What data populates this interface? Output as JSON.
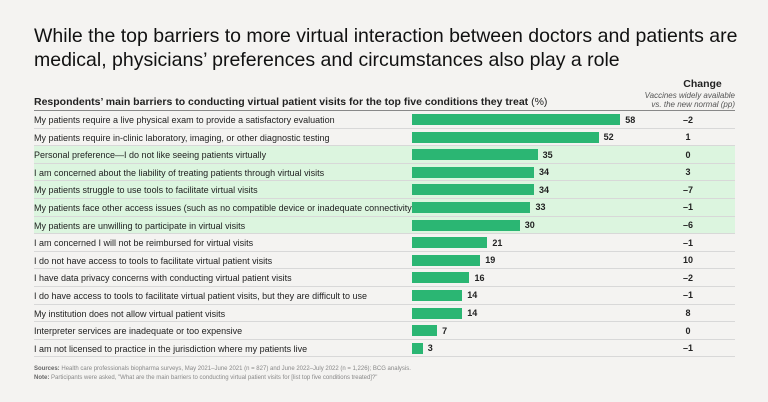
{
  "chart_data": {
    "type": "bar",
    "title": "While the top barriers to more virtual interaction between doctors and patients are medical, physicians’ preferences and circumstances also play a role",
    "subtitle": "Respondents’ main barriers to conducting virtual patient visits for the top five conditions they treat",
    "subtitle_unit": "(%)",
    "change_header": "Change",
    "change_sub1": "Vaccines widely available",
    "change_sub2": "vs. the new normal (pp)",
    "xlim": [
      0,
      100
    ],
    "highlight_color": "#dcf5df",
    "bar_color": "#2bb673",
    "rows": [
      {
        "label": "My patients require a live physical exam to provide a satisfactory evaluation",
        "value": 58,
        "change": "–2",
        "highlight": false
      },
      {
        "label": "My patients require in-clinic laboratory, imaging, or other diagnostic testing",
        "value": 52,
        "change": "1",
        "highlight": false
      },
      {
        "label": "Personal preference—I do not like seeing patients virtually",
        "value": 35,
        "change": "0",
        "highlight": true
      },
      {
        "label": "I am concerned about the liability of treating patients through virtual visits",
        "value": 34,
        "change": "3",
        "highlight": true
      },
      {
        "label": "My patients struggle to use tools to facilitate virtual visits",
        "value": 34,
        "change": "–7",
        "highlight": true
      },
      {
        "label": "My patients face other access issues (such as no compatible device or inadequate connectivity)",
        "value": 33,
        "change": "–1",
        "highlight": true
      },
      {
        "label": "My patients are unwilling to participate in virtual visits",
        "value": 30,
        "change": "–6",
        "highlight": true
      },
      {
        "label": "I am concerned I will not be reimbursed for virtual visits",
        "value": 21,
        "change": "–1",
        "highlight": false
      },
      {
        "label": "I do not have access to tools to facilitate virtual patient visits",
        "value": 19,
        "change": "10",
        "highlight": false
      },
      {
        "label": "I have data privacy concerns with conducting virtual patient visits",
        "value": 16,
        "change": "–2",
        "highlight": false
      },
      {
        "label": "I do have access to tools to facilitate virtual patient visits, but they are difficult to use",
        "value": 14,
        "change": "–1",
        "highlight": false
      },
      {
        "label": "My institution does not allow virtual patient visits",
        "value": 14,
        "change": "8",
        "highlight": false
      },
      {
        "label": "Interpreter services are inadequate or too expensive",
        "value": 7,
        "change": "0",
        "highlight": false
      },
      {
        "label": "I am not licensed to practice in the jurisdiction where my patients live",
        "value": 3,
        "change": "–1",
        "highlight": false
      }
    ]
  },
  "footer": {
    "sources_label": "Sources:",
    "sources": "Health care professionals biopharma surveys, May 2021–June 2021 (n = 827) and June 2022–July 2022 (n = 1,226); BCG analysis.",
    "note_label": "Note:",
    "note": "Participants were asked, \"What are the main barriers to conducting virtual patient visits for [list top five conditions treated]?\""
  }
}
